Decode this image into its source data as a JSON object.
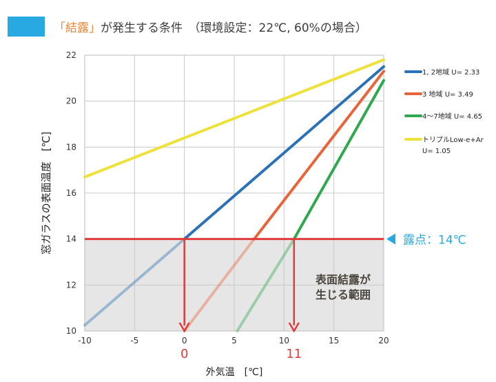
{
  "chart_data": {
    "type": "line",
    "title_highlight": "「結露」",
    "title_rest": "が発生する条件　（環境設定：22℃, 60%の場合）",
    "xlabel": "外気温　[℃]",
    "ylabel": "窓ガラスの表面温度　[℃]",
    "xlim": [
      -10,
      20
    ],
    "ylim": [
      10,
      22
    ],
    "xticks": [
      -10,
      -5,
      0,
      5,
      10,
      15,
      20
    ],
    "xtick_labels": [
      "-10",
      "-5",
      "0",
      "5",
      "10",
      "15",
      "20"
    ],
    "yticks": [
      10,
      12,
      14,
      16,
      18,
      20,
      22
    ],
    "ytick_labels": [
      "10",
      "12",
      "14",
      "16",
      "18",
      "20",
      "22"
    ],
    "grid": true,
    "legend_position": "right",
    "series": [
      {
        "name": "1, 2地域 U= 2.33",
        "color": "#2a72b5",
        "x": [
          -10,
          0,
          20
        ],
        "y": [
          10.25,
          14,
          21.5
        ]
      },
      {
        "name": "3 地域 U= 3.49",
        "color": "#e8643a",
        "x": [
          0,
          7,
          20
        ],
        "y": [
          10,
          14,
          21.3
        ]
      },
      {
        "name": "4〜7地域 U= 4.65",
        "color": "#2fa84f",
        "x": [
          5.3,
          11,
          20
        ],
        "y": [
          10,
          14,
          20.9
        ]
      },
      {
        "name": "トリプルLow-e+Ar",
        "name2": "U= 1.05",
        "color": "#ede13a",
        "x": [
          -10,
          20
        ],
        "y": [
          16.7,
          21.8
        ]
      }
    ],
    "dew_point": {
      "value": 14,
      "label": "露点：14℃",
      "color": "#e03a3a",
      "marker_color": "#29a9e1"
    },
    "crossings": [
      {
        "x": 0,
        "label": "0"
      },
      {
        "x": 11,
        "label": "11"
      }
    ],
    "region_label_1": "表面結露が",
    "region_label_2": "生じる範囲"
  }
}
